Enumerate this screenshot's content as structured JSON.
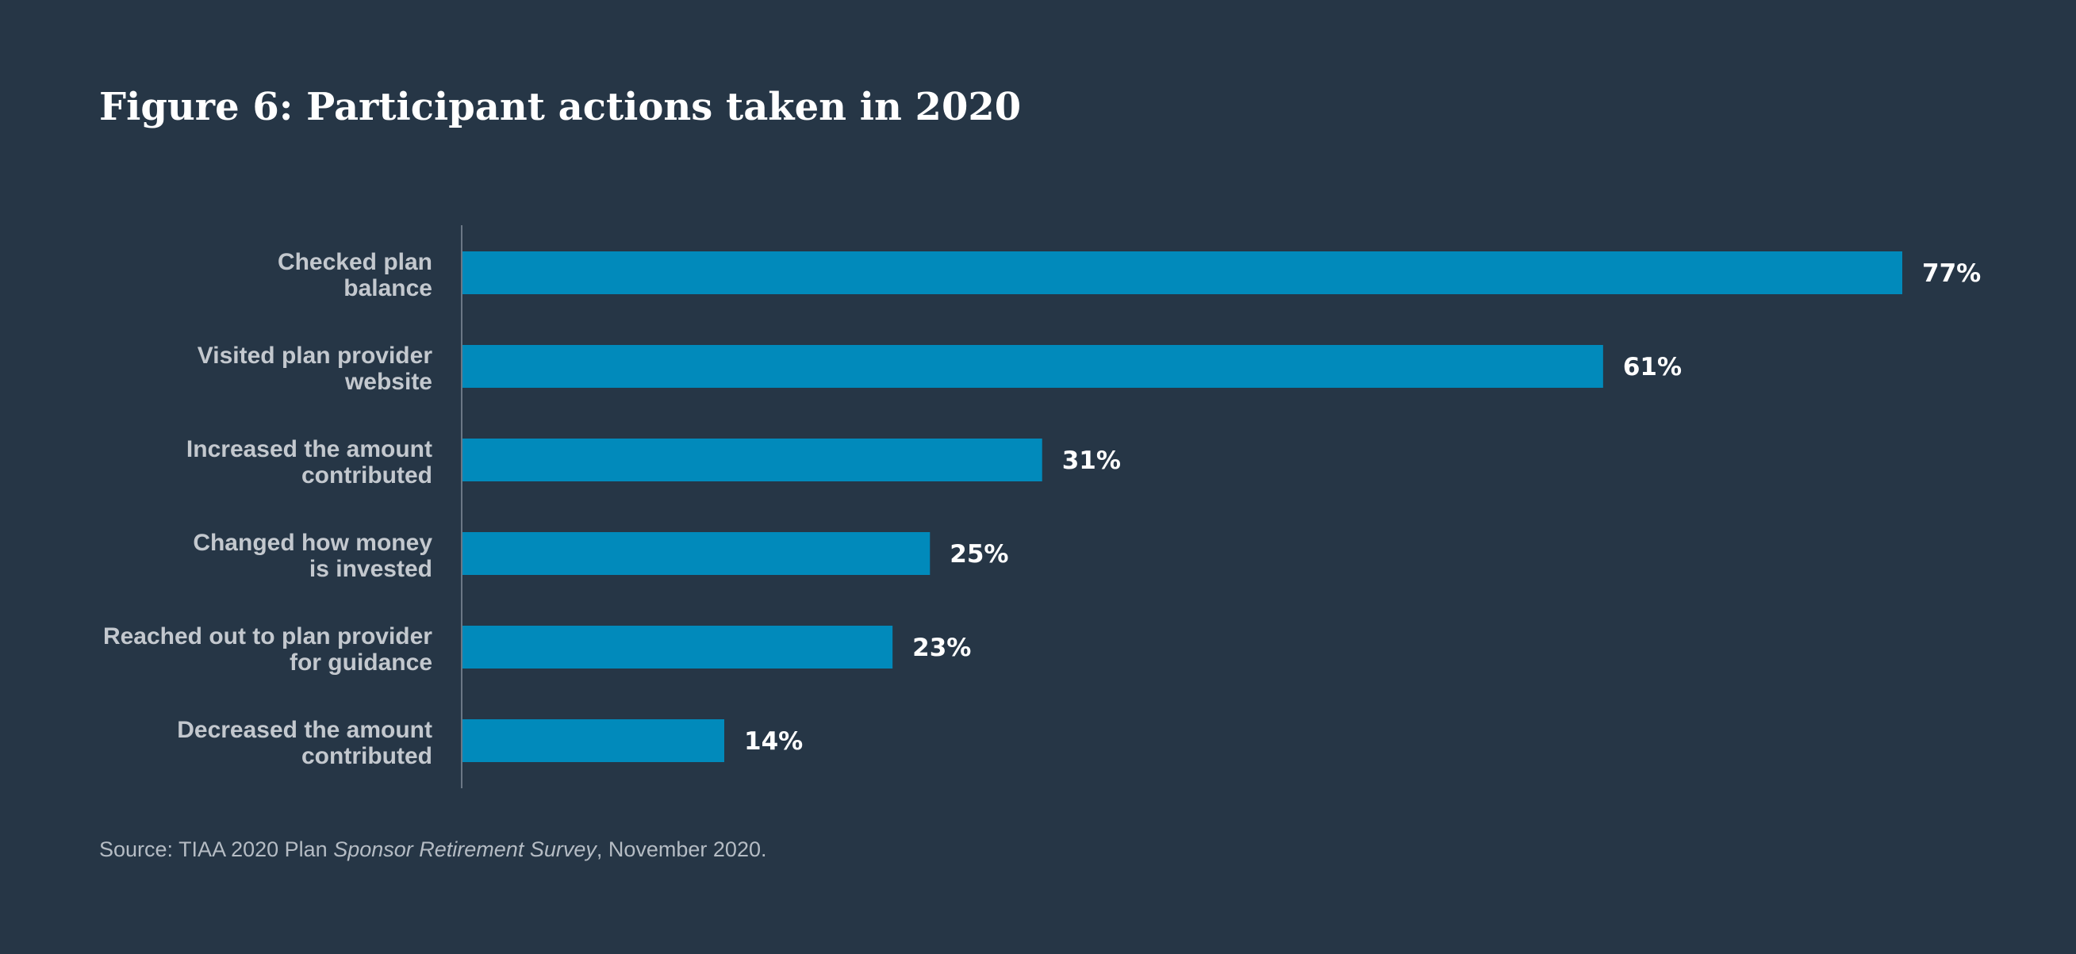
{
  "colors": {
    "background": "#263646",
    "bar": "#018abb",
    "axis": "#6b7785",
    "category_text": "#c3c8ce",
    "value_text": "#ffffff"
  },
  "source": {
    "prefix": "Source: TIAA 2020 Plan ",
    "italic": "Sponsor Retirement Survey",
    "suffix": ", November 2020."
  },
  "chart_data": {
    "type": "bar",
    "orientation": "horizontal",
    "title": "Figure 6: Participant actions taken in 2020",
    "categories": [
      "Checked plan balance",
      "Visited plan provider website",
      "Increased the amount contributed",
      "Changed how money is invested",
      "Reached out to plan provider for guidance",
      "Decreased the amount contributed"
    ],
    "category_lines": [
      [
        "Checked plan",
        "balance"
      ],
      [
        "Visited plan provider",
        "website"
      ],
      [
        "Increased the amount",
        "contributed"
      ],
      [
        "Changed how money",
        "is invested"
      ],
      [
        "Reached out to plan provider",
        "for guidance"
      ],
      [
        "Decreased the amount",
        "contributed"
      ]
    ],
    "values": [
      77,
      61,
      31,
      25,
      23,
      14
    ],
    "value_labels": [
      "77%",
      "61%",
      "31%",
      "25%",
      "23%",
      "14%"
    ],
    "unit": "%",
    "xlim": [
      0,
      100
    ],
    "xlabel": "",
    "ylabel": "",
    "grid": false,
    "legend": "none"
  }
}
